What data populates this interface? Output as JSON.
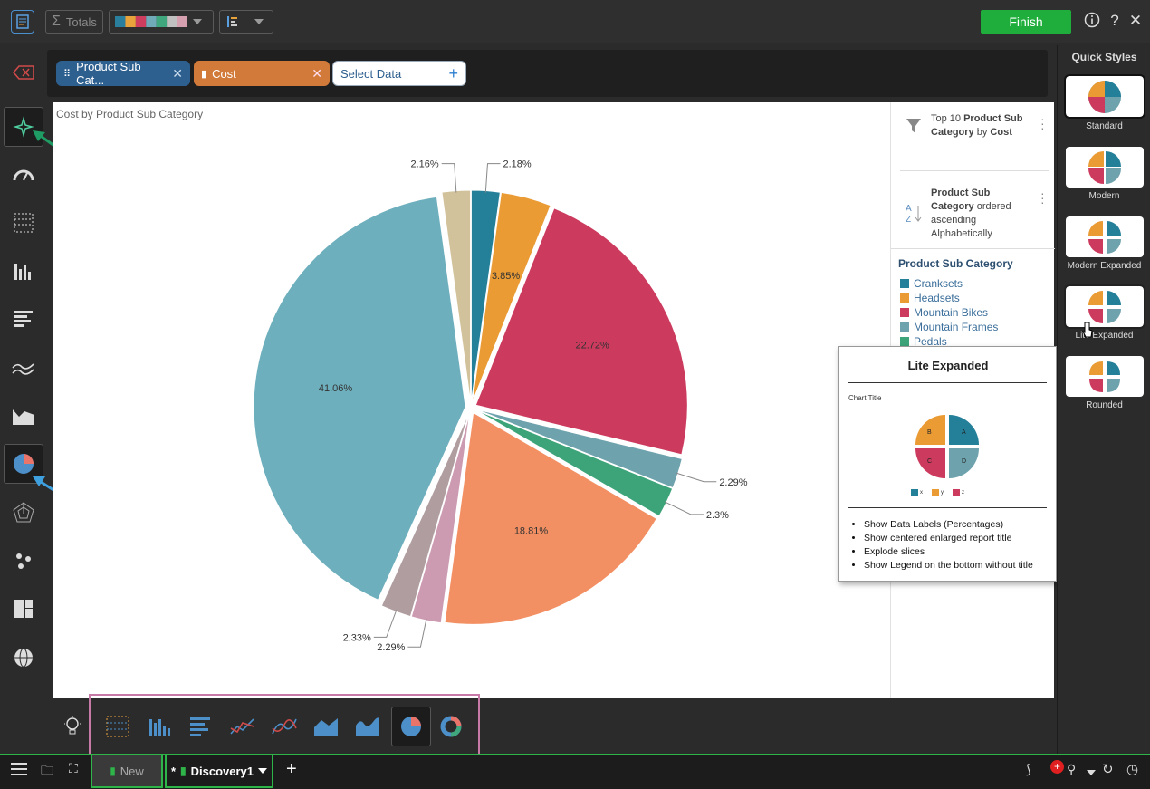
{
  "toolbar": {
    "totals_label": "Totals",
    "finish_label": "Finish",
    "palette_colors": [
      "#2a7f9e",
      "#e8a33d",
      "#cf3d5e",
      "#70a9b8",
      "#3fa67d",
      "#c0c0c0",
      "#d4a0b0"
    ]
  },
  "datazone": {
    "chips": [
      {
        "label": "Product Sub Cat...",
        "color": "#2d5f8f"
      },
      {
        "label": "Cost",
        "color": "#d27a3a"
      }
    ],
    "select_data_label": "Select Data"
  },
  "chart": {
    "title": "Cost by Product Sub Category"
  },
  "chart_data": {
    "type": "pie",
    "title": "Cost by Product Sub Category",
    "slices": [
      {
        "label": "2.18%",
        "value": 2.18,
        "color": "#247f98"
      },
      {
        "label": "3.85%",
        "value": 3.85,
        "color": "#ea9b34"
      },
      {
        "label": "22.72%",
        "value": 22.72,
        "color": "#cc3a5e"
      },
      {
        "label": "2.29%",
        "value": 2.29,
        "color": "#6ea2ad"
      },
      {
        "label": "2.3%",
        "value": 2.3,
        "color": "#3da47a"
      },
      {
        "label": "18.81%",
        "value": 18.81,
        "color": "#f39063"
      },
      {
        "label": "2.29%",
        "value": 2.29,
        "color": "#cc9ab1"
      },
      {
        "label": "2.33%",
        "value": 2.33,
        "color": "#b09da0"
      },
      {
        "label": "41.06%",
        "value": 41.06,
        "color": "#6eafbd"
      },
      {
        "label": "2.16%",
        "value": 2.16,
        "color": "#d2c29c"
      }
    ],
    "legend_title": "Product Sub Category",
    "legend": [
      {
        "name": "Cranksets",
        "color": "#247f98"
      },
      {
        "name": "Headsets",
        "color": "#ea9b34"
      },
      {
        "name": "Mountain Bikes",
        "color": "#cc3a5e"
      },
      {
        "name": "Mountain Frames",
        "color": "#6ea2ad"
      },
      {
        "name": "Pedals",
        "color": "#3da47a"
      }
    ]
  },
  "filters": {
    "top_n": {
      "prefix": "Top 10 ",
      "field": "Product Sub Category",
      "by": " by ",
      "measure": "Cost"
    },
    "sort": {
      "field": "Product Sub Category",
      "text": " ordered ascending Alphabetically"
    }
  },
  "tooltip": {
    "title": "Lite Expanded",
    "chart_title": "Chart Title",
    "legend_labels": [
      "x",
      "y",
      "z"
    ],
    "bullets": [
      "Show Data Labels (Percentages)",
      "Show centered enlarged report title",
      "Explode slices",
      "Show Legend on the bottom without title"
    ]
  },
  "quick_styles": {
    "header": "Quick Styles",
    "items": [
      "Standard",
      "Modern",
      "Modern Expanded",
      "Lite Expanded",
      "Rounded"
    ]
  },
  "status": {
    "tabs": [
      {
        "label": "New"
      },
      {
        "label": "Discovery1",
        "modified": "*"
      }
    ]
  }
}
